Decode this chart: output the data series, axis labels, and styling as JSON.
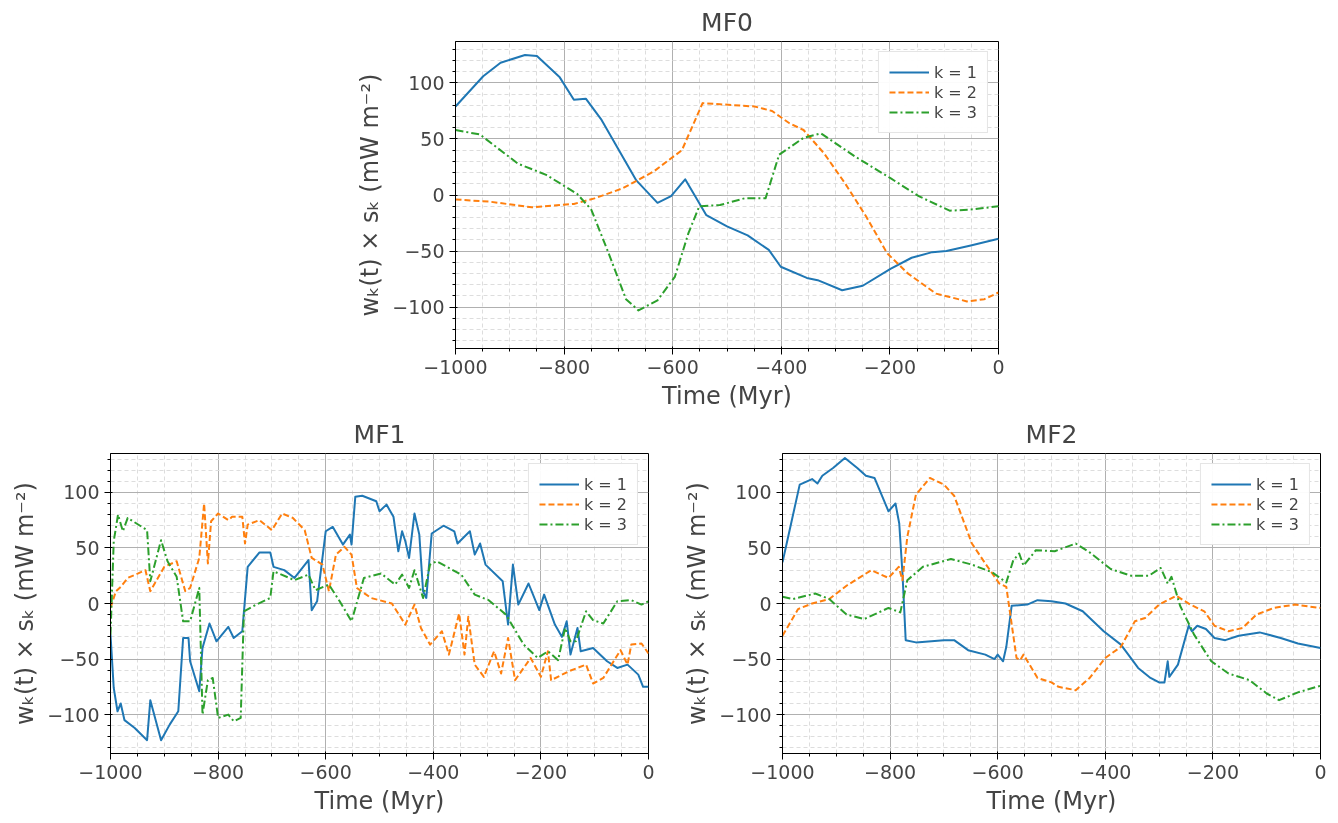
{
  "chart_data": [
    {
      "type": "line",
      "title": "MF0",
      "xlabel": "Time (Myr)",
      "ylabel": "wₖ(t) × sₖ (mW m⁻²)",
      "xlim": [
        -1000,
        0
      ],
      "ylim": [
        -137,
        137
      ],
      "xticks": [
        -1000,
        -800,
        -600,
        -400,
        -200,
        0
      ],
      "yticks": [
        -100,
        -50,
        0,
        50,
        100
      ],
      "grid": true,
      "legend": "top right",
      "series": [
        {
          "name": "k = 1",
          "color": "#1f77b4",
          "line_style": "solid",
          "x": [
            -1000,
            -949,
            -917,
            -872,
            -850,
            -808,
            -782,
            -760,
            -731,
            -699,
            -667,
            -628,
            -603,
            -577,
            -538,
            -500,
            -462,
            -423,
            -401,
            -353,
            -333,
            -288,
            -250,
            -199,
            -160,
            -122,
            -96,
            -51,
            0
          ],
          "values": [
            79,
            106,
            118,
            125,
            124,
            105,
            85,
            86,
            67,
            40,
            13,
            -7,
            -1,
            14,
            -18,
            -28,
            -36,
            -49,
            -64,
            -74,
            -76,
            -85,
            -81,
            -66,
            -56,
            -51,
            -50,
            -45,
            -39
          ]
        },
        {
          "name": "k = 2",
          "color": "#ff7f0e",
          "line_style": "dashed",
          "x": [
            -1000,
            -936,
            -859,
            -782,
            -744,
            -692,
            -635,
            -583,
            -545,
            -513,
            -449,
            -417,
            -385,
            -359,
            -321,
            -282,
            -244,
            -205,
            -167,
            -115,
            -90,
            -58,
            -26,
            0
          ],
          "values": [
            -4,
            -6,
            -11,
            -8,
            -3,
            6,
            21,
            40,
            82,
            81,
            79,
            75,
            64,
            58,
            37,
            10,
            -19,
            -52,
            -70,
            -88,
            -91,
            -95,
            -93,
            -87
          ]
        },
        {
          "name": "k = 3",
          "color": "#2ca02c",
          "line_style": "dashdot",
          "x": [
            -1000,
            -955,
            -885,
            -833,
            -776,
            -750,
            -718,
            -686,
            -663,
            -628,
            -596,
            -571,
            -551,
            -513,
            -468,
            -429,
            -404,
            -359,
            -327,
            -263,
            -199,
            -147,
            -90,
            -51,
            0
          ],
          "values": [
            58,
            54,
            28,
            18,
            1,
            -13,
            -52,
            -93,
            -103,
            -94,
            -73,
            -34,
            -10,
            -9,
            -3,
            -3,
            36,
            51,
            55,
            34,
            15,
            -1,
            -14,
            -13,
            -10
          ]
        }
      ]
    },
    {
      "type": "line",
      "title": "MF1",
      "xlabel": "Time (Myr)",
      "ylabel": "wₖ(t) × sₖ (mW m⁻²)",
      "xlim": [
        -1000,
        0
      ],
      "ylim": [
        -135,
        135
      ],
      "xticks": [
        -1000,
        -800,
        -600,
        -400,
        -200,
        0
      ],
      "yticks": [
        -100,
        -50,
        0,
        50,
        100
      ],
      "grid": true,
      "legend": "top right",
      "series": [
        {
          "name": "k = 1",
          "color": "#1f77b4",
          "line_style": "solid",
          "x": [
            -1000,
            -994,
            -987,
            -981,
            -974,
            -955,
            -932,
            -926,
            -906,
            -890,
            -874,
            -865,
            -855,
            -852,
            -835,
            -829,
            -816,
            -803,
            -781,
            -771,
            -755,
            -745,
            -723,
            -703,
            -697,
            -677,
            -658,
            -632,
            -626,
            -616,
            -600,
            -587,
            -568,
            -555,
            -552,
            -545,
            -532,
            -506,
            -500,
            -487,
            -474,
            -465,
            -458,
            -452,
            -445,
            -435,
            -426,
            -419,
            -413,
            -403,
            -381,
            -361,
            -355,
            -332,
            -323,
            -313,
            -303,
            -271,
            -261,
            -252,
            -242,
            -223,
            -203,
            -194,
            -174,
            -161,
            -152,
            -145,
            -132,
            -126,
            -103,
            -77,
            -58,
            -39,
            -19,
            -10,
            0
          ],
          "values": [
            -28,
            -76,
            -97,
            -90,
            -105,
            -112,
            -123,
            -87,
            -123,
            -109,
            -97,
            -31,
            -31,
            -52,
            -79,
            -40,
            -18,
            -34,
            -21,
            -31,
            -25,
            33,
            46,
            46,
            33,
            30,
            23,
            39,
            -6,
            2,
            65,
            69,
            53,
            62,
            53,
            96,
            97,
            92,
            83,
            89,
            78,
            47,
            65,
            56,
            41,
            81,
            62,
            11,
            5,
            63,
            70,
            65,
            54,
            65,
            44,
            54,
            35,
            20,
            -19,
            35,
            -1,
            18,
            -6,
            8,
            -19,
            -30,
            -16,
            -46,
            -22,
            -43,
            -40,
            -52,
            -58,
            -55,
            -64,
            -75,
            -75
          ]
        },
        {
          "name": "k = 2",
          "color": "#ff7f0e",
          "line_style": "dashed",
          "x": [
            -1000,
            -990,
            -981,
            -968,
            -935,
            -926,
            -900,
            -877,
            -861,
            -852,
            -835,
            -826,
            -819,
            -813,
            -800,
            -781,
            -774,
            -755,
            -750,
            -745,
            -723,
            -700,
            -681,
            -661,
            -639,
            -626,
            -606,
            -594,
            -581,
            -565,
            -552,
            -542,
            -516,
            -477,
            -452,
            -435,
            -423,
            -406,
            -384,
            -371,
            -352,
            -342,
            -335,
            -323,
            -306,
            -287,
            -274,
            -261,
            -248,
            -219,
            -200,
            -187,
            -181,
            -148,
            -116,
            -103,
            -84,
            -52,
            -39,
            -32,
            -13,
            0
          ],
          "values": [
            -4,
            11,
            15,
            23,
            30,
            11,
            33,
            38,
            11,
            14,
            41,
            90,
            36,
            74,
            81,
            75,
            78,
            78,
            54,
            71,
            75,
            66,
            81,
            77,
            66,
            41,
            35,
            11,
            44,
            51,
            44,
            14,
            5,
            0,
            -19,
            -1,
            -22,
            -37,
            -25,
            -46,
            -9,
            -46,
            -12,
            -55,
            -66,
            -43,
            -63,
            -31,
            -69,
            -49,
            -66,
            -43,
            -69,
            -61,
            -55,
            -72,
            -67,
            -42,
            -55,
            -37,
            -36,
            -45
          ]
        },
        {
          "name": "k = 3",
          "color": "#2ca02c",
          "line_style": "dashdot",
          "x": [
            -1000,
            -994,
            -986,
            -977,
            -968,
            -932,
            -926,
            -906,
            -894,
            -877,
            -865,
            -852,
            -835,
            -829,
            -819,
            -810,
            -800,
            -781,
            -771,
            -758,
            -752,
            -729,
            -703,
            -697,
            -658,
            -632,
            -619,
            -594,
            -574,
            -552,
            -529,
            -497,
            -471,
            -458,
            -445,
            -435,
            -419,
            -406,
            -394,
            -348,
            -323,
            -297,
            -265,
            -232,
            -206,
            -187,
            -168,
            -155,
            -145,
            -135,
            -116,
            -103,
            -84,
            -58,
            -32,
            -13,
            0
          ],
          "values": [
            -28,
            56,
            80,
            65,
            77,
            66,
            20,
            57,
            38,
            24,
            -16,
            -16,
            14,
            -100,
            -69,
            -67,
            -103,
            -100,
            -106,
            -103,
            -7,
            -1,
            5,
            29,
            21,
            26,
            12,
            17,
            2,
            -16,
            23,
            27,
            17,
            26,
            14,
            30,
            5,
            35,
            38,
            26,
            8,
            3,
            -10,
            -37,
            -49,
            -43,
            -51,
            -22,
            -34,
            -34,
            -7,
            -15,
            -18,
            2,
            3,
            -1,
            2
          ]
        }
      ]
    },
    {
      "type": "line",
      "title": "MF2",
      "xlabel": "Time (Myr)",
      "ylabel": "wₖ(t) × sₖ (mW m⁻²)",
      "xlim": [
        -1000,
        0
      ],
      "ylim": [
        -135,
        135
      ],
      "xticks": [
        -1000,
        -800,
        -600,
        -400,
        -200,
        0
      ],
      "yticks": [
        -100,
        -50,
        0,
        50,
        100
      ],
      "grid": true,
      "legend": "top right",
      "series": [
        {
          "name": "k = 1",
          "color": "#1f77b4",
          "line_style": "solid",
          "x": [
            -1000,
            -984,
            -968,
            -945,
            -935,
            -926,
            -906,
            -884,
            -861,
            -845,
            -829,
            -803,
            -790,
            -783,
            -777,
            -771,
            -752,
            -700,
            -681,
            -655,
            -623,
            -606,
            -600,
            -590,
            -584,
            -574,
            -545,
            -526,
            -500,
            -474,
            -442,
            -403,
            -371,
            -339,
            -316,
            -300,
            -290,
            -284,
            -281,
            -265,
            -245,
            -239,
            -229,
            -213,
            -197,
            -177,
            -152,
            -113,
            -74,
            -42,
            0
          ],
          "values": [
            37,
            72,
            107,
            112,
            108,
            115,
            122,
            131,
            122,
            115,
            113,
            83,
            90,
            72,
            27,
            -33,
            -35,
            -33,
            -33,
            -42,
            -46,
            -50,
            -46,
            -52,
            -39,
            -2,
            -1,
            3,
            2,
            0,
            -7,
            -25,
            -37,
            -58,
            -67,
            -71,
            -71,
            -52,
            -66,
            -55,
            -20,
            -25,
            -20,
            -23,
            -31,
            -33,
            -29,
            -26,
            -31,
            -36,
            -40
          ]
        },
        {
          "name": "k = 2",
          "color": "#ff7f0e",
          "line_style": "dashed",
          "x": [
            -1000,
            -971,
            -945,
            -913,
            -881,
            -835,
            -803,
            -784,
            -777,
            -768,
            -752,
            -726,
            -700,
            -681,
            -648,
            -623,
            -597,
            -584,
            -565,
            -558,
            -552,
            -526,
            -500,
            -487,
            -455,
            -429,
            -400,
            -371,
            -345,
            -326,
            -300,
            -268,
            -242,
            -216,
            -197,
            -171,
            -145,
            -119,
            -87,
            -48,
            0
          ],
          "values": [
            -29,
            -5,
            0,
            4,
            16,
            30,
            23,
            33,
            21,
            60,
            98,
            113,
            107,
            97,
            54,
            36,
            18,
            15,
            -49,
            -51,
            -46,
            -67,
            -71,
            -75,
            -78,
            -67,
            -49,
            -39,
            -16,
            -13,
            -1,
            7,
            -1,
            -7,
            -20,
            -25,
            -22,
            -10,
            -4,
            -1,
            -4
          ]
        },
        {
          "name": "k = 3",
          "color": "#2ca02c",
          "line_style": "dashdot",
          "x": [
            -1000,
            -981,
            -939,
            -913,
            -881,
            -848,
            -803,
            -781,
            -768,
            -739,
            -687,
            -648,
            -610,
            -584,
            -571,
            -560,
            -552,
            -529,
            -494,
            -455,
            -429,
            -390,
            -352,
            -319,
            -297,
            -284,
            -277,
            -261,
            -235,
            -203,
            -171,
            -132,
            -100,
            -77,
            -42,
            0
          ],
          "values": [
            6,
            4,
            9,
            4,
            -10,
            -14,
            -4,
            -8,
            21,
            33,
            40,
            35,
            28,
            19,
            39,
            45,
            34,
            48,
            47,
            54,
            46,
            31,
            25,
            25,
            32,
            18,
            24,
            -2,
            -28,
            -52,
            -63,
            -69,
            -81,
            -87,
            -80,
            -74
          ]
        }
      ]
    }
  ]
}
